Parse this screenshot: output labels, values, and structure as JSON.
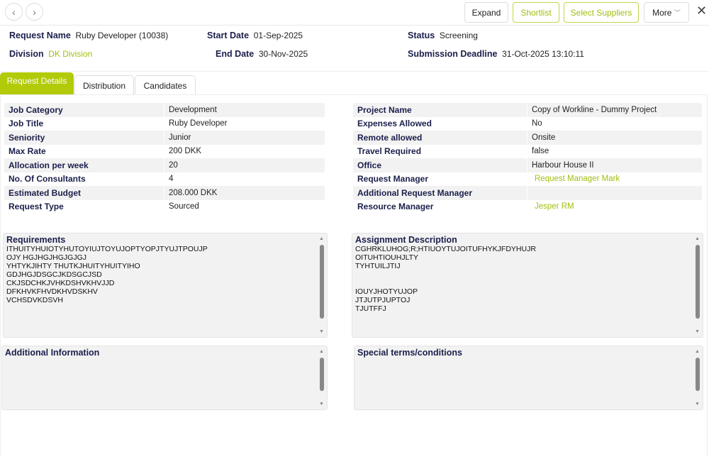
{
  "nav": {
    "back_icon": "chevron-left-icon",
    "forward_icon": "chevron-right-icon"
  },
  "toolbar": {
    "expand": "Expand",
    "shortlist": "Shortlist",
    "select_suppliers": "Select Suppliers",
    "more": "More",
    "close_icon": "close-icon"
  },
  "summary": {
    "request_name_label": "Request Name",
    "request_name": "Ruby Developer (10038)",
    "division_label": "Division",
    "division": "DK Division",
    "start_date_label": "Start Date",
    "start_date": "01-Sep-2025",
    "end_date_label": "End Date",
    "end_date": "30-Nov-2025",
    "status_label": "Status",
    "status": "Screening",
    "deadline_label": "Submission Deadline",
    "deadline": "31-Oct-2025 13:10:11"
  },
  "tabs": [
    {
      "label": "Request Details",
      "active": true
    },
    {
      "label": "Distribution"
    },
    {
      "label": "Candidates"
    }
  ],
  "left_table": [
    {
      "k": "Job Category",
      "v": "Development"
    },
    {
      "k": "Job Title",
      "v": "Ruby Developer"
    },
    {
      "k": "Seniority",
      "v": "Junior"
    },
    {
      "k": "Max Rate",
      "v": "200 DKK"
    },
    {
      "k": "Allocation per week",
      "v": "20"
    },
    {
      "k": "No. Of Consultants",
      "v": "4"
    },
    {
      "k": "Estimated Budget",
      "v": "208.000 DKK"
    },
    {
      "k": "Request Type",
      "v": "Sourced"
    }
  ],
  "right_table": [
    {
      "k": "Project Name",
      "v": "Copy of Workline - Dummy Project"
    },
    {
      "k": "Expenses Allowed",
      "v": "No"
    },
    {
      "k": "Remote allowed",
      "v": "Onsite"
    },
    {
      "k": "Travel Required",
      "v": "false"
    },
    {
      "k": "Office",
      "v": "Harbour House II"
    },
    {
      "k": "Request Manager",
      "v": "Request Manager Mark",
      "link": true
    },
    {
      "k": "Additional Request Manager",
      "v": ""
    },
    {
      "k": "Resource Manager",
      "v": "Jesper RM",
      "link": true
    }
  ],
  "requirements": {
    "title": "Requirements",
    "text": "ITHUITYHUIOTYHUTOYIUJTOYUJOPTYOPJTYUJTPOUJP\nOJY HGJHGJHGJGJGJ\nYHTYKJIHTY THUTKJHUITYHUITYIHO\nGDJHGJDSGCJKDSGCJSD\nCKJSDCHKJVHKDSHVKHVJJD\nDFKHVKFHVDKHVDSKHV\nVCHSDVKDSVH"
  },
  "assignment": {
    "title": "Assignment Description",
    "text": "CGHRKLUHOG;R;HTIUOYTUJOITUFHYKJFDYHUJR\nOITUHTIOUHJLTY\nTYHTUILJTIJ\n\n\nIOUYJHOTYUJOP\nJTJUTPJUPTOJ\nTJUTFFJ"
  },
  "additional": {
    "title": "Additional Information",
    "text": ""
  },
  "special": {
    "title": "Special terms/conditions",
    "text": ""
  },
  "colors": {
    "accent": "#b3ca08",
    "label": "#1b1f4b"
  }
}
